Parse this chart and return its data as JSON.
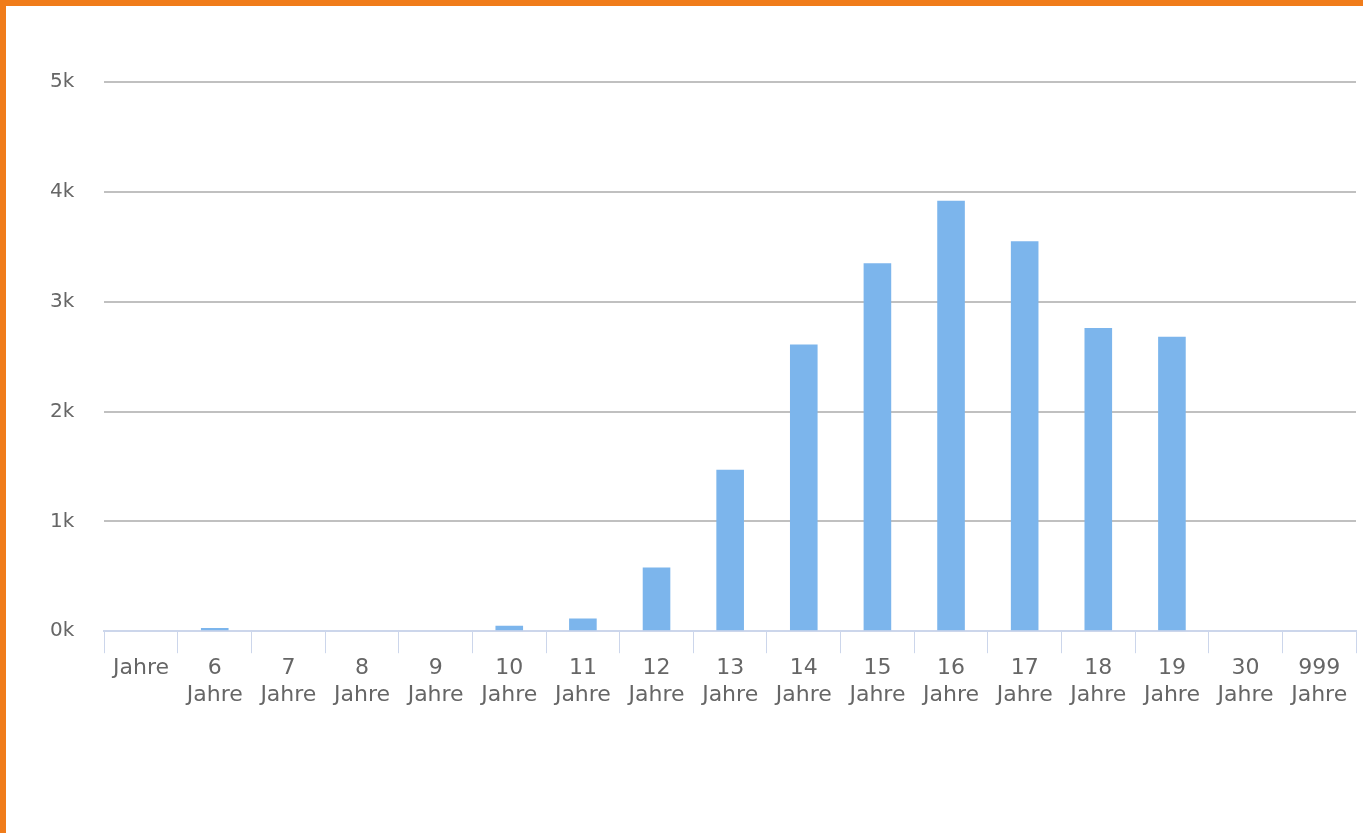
{
  "chart_data": {
    "type": "bar",
    "categories": [
      "Jahre",
      "6 Jahre",
      "7 Jahre",
      "8 Jahre",
      "9 Jahre",
      "10 Jahre",
      "11 Jahre",
      "12 Jahre",
      "13 Jahre",
      "14 Jahre",
      "15 Jahre",
      "16 Jahre",
      "17 Jahre",
      "18 Jahre",
      "19 Jahre",
      "30 Jahre",
      "999 Jahre"
    ],
    "series": [
      {
        "color": "#7cb5ec",
        "values": [
          0,
          30,
          0,
          0,
          0,
          50,
          115,
          580,
          1470,
          2610,
          3350,
          3920,
          3550,
          2760,
          2680,
          0,
          0
        ]
      }
    ],
    "ylim": [
      0,
      5000
    ],
    "yticks": [
      {
        "value": 0,
        "label": "0k"
      },
      {
        "value": 1000,
        "label": "1k"
      },
      {
        "value": 2000,
        "label": "2k"
      },
      {
        "value": 3000,
        "label": "3k"
      },
      {
        "value": 4000,
        "label": "4k"
      },
      {
        "value": 5000,
        "label": "5k"
      }
    ],
    "grid": "y"
  }
}
